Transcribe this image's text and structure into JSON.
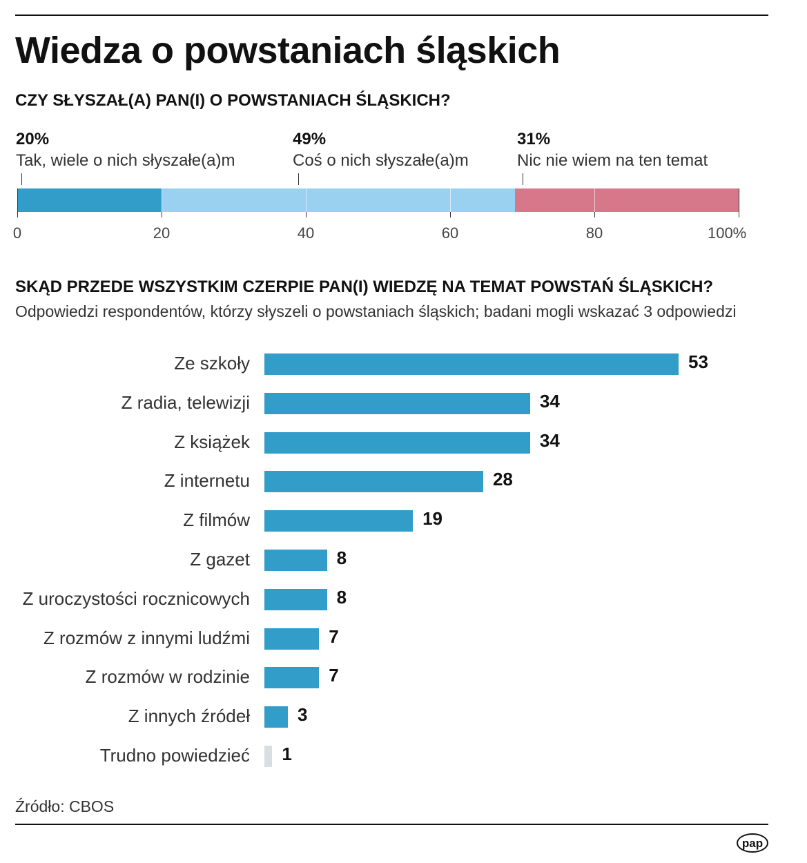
{
  "title": "Wiedza o powstaniach śląskich",
  "source": "Źródło: CBOS",
  "logo": "pap",
  "chart_data": [
    {
      "type": "bar",
      "stacked": true,
      "orientation": "horizontal",
      "title": "CZY SŁYSZAŁ(A) PAN(I) O POWSTANIACH ŚLĄSKICH?",
      "series": [
        {
          "name": "Tak, wiele o nich słyszałe(a)m",
          "label": "20%",
          "value": 20,
          "color": "#339DC9"
        },
        {
          "name": "Coś o nich słyszałe(a)m",
          "label": "49%",
          "value": 49,
          "color": "#9AD0F0"
        },
        {
          "name": "Nic nie wiem na ten temat",
          "label": "31%",
          "value": 31,
          "color": "#D6788A"
        }
      ],
      "xlim": [
        0,
        100
      ],
      "ticks": [
        "0",
        "20",
        "40",
        "60",
        "80",
        "100%"
      ],
      "tick_values": [
        0,
        20,
        40,
        60,
        80,
        100
      ]
    },
    {
      "type": "bar",
      "orientation": "horizontal",
      "title": "SKĄD PRZEDE WSZYSTKIM CZERPIE PAN(I) WIEDZĘ NA TEMAT POWSTAŃ ŚLĄSKICH?",
      "subtitle": "Odpowiedzi respondentów, którzy słyszeli o powstaniach śląskich; badani mogli wskazać 3 odpowiedzi",
      "categories": [
        "Ze szkoły",
        "Z radia, telewizji",
        "Z książek",
        "Z internetu",
        "Z filmów",
        "Z gazet",
        "Z uroczystości rocznicowych",
        "Z rozmów z innymi ludźmi",
        "Z rozmów w rodzinie",
        "Z innych źródeł",
        "Trudno powiedzieć"
      ],
      "values": [
        53,
        34,
        34,
        28,
        19,
        8,
        8,
        7,
        7,
        3,
        1
      ],
      "color": "#339DC9",
      "muted_color": "#D9DEE3"
    }
  ]
}
